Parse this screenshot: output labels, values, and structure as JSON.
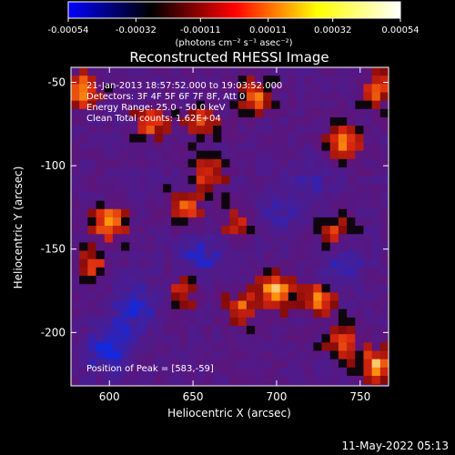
{
  "chart_data": {
    "type": "heatmap",
    "title": "Reconstructed RHESSI Image",
    "xlabel": "Heliocentric X (arcsec)",
    "ylabel": "Heliocentric Y (arcsec)",
    "xlim": [
      577,
      767
    ],
    "ylim": [
      -232,
      -41
    ],
    "x_ticks": [
      {
        "value": 600,
        "label": "600"
      },
      {
        "value": 650,
        "label": "650"
      },
      {
        "value": 700,
        "label": "700"
      },
      {
        "value": 750,
        "label": "750"
      }
    ],
    "y_ticks": [
      {
        "value": -50,
        "label": "-50"
      },
      {
        "value": -100,
        "label": "-100"
      },
      {
        "value": -150,
        "label": "-150"
      },
      {
        "value": -200,
        "label": "-200"
      }
    ],
    "colorbar": {
      "min": -0.00054,
      "max": 0.00054,
      "unit_label": "(photons cm⁻² s⁻¹ asec⁻²)",
      "ticks": [
        {
          "value": -0.00054,
          "label": "-0.00054"
        },
        {
          "value": -0.00032,
          "label": "-0.00032"
        },
        {
          "value": -0.00011,
          "label": "-0.00011"
        },
        {
          "value": 0.00011,
          "label": "0.00011"
        },
        {
          "value": 0.00032,
          "label": "0.00032"
        },
        {
          "value": 0.00054,
          "label": "0.00054"
        }
      ],
      "colormap": [
        "#0000ff",
        "#000000",
        "#ff0000",
        "#ffff00",
        "#ffffff"
      ]
    },
    "annotations": [
      "21-Jan-2013 18:57:52.000 to 19:03:52.000",
      "Detectors: 3F 4F 5F 6F 7F 8F, Att 0",
      "Energy Range: 25.0 - 50.0 keV",
      "Clean     Total counts: 1.62E+04"
    ],
    "peak_annotation": "Position of Peak = [583,-59]",
    "peak_position": [
      583,
      -59
    ],
    "hot_spots": [
      {
        "x": 583,
        "y": -55,
        "level": 0.95
      },
      {
        "x": 625,
        "y": -75,
        "level": 0.6
      },
      {
        "x": 655,
        "y": -72,
        "level": 0.55
      },
      {
        "x": 688,
        "y": -58,
        "level": 0.7
      },
      {
        "x": 740,
        "y": -85,
        "level": 0.8
      },
      {
        "x": 760,
        "y": -55,
        "level": 0.6
      },
      {
        "x": 600,
        "y": -135,
        "level": 0.85
      },
      {
        "x": 645,
        "y": -125,
        "level": 0.6
      },
      {
        "x": 660,
        "y": -105,
        "level": 0.6
      },
      {
        "x": 675,
        "y": -135,
        "level": 0.5
      },
      {
        "x": 590,
        "y": -160,
        "level": 0.5
      },
      {
        "x": 700,
        "y": -175,
        "level": 0.9
      },
      {
        "x": 725,
        "y": -180,
        "level": 0.7
      },
      {
        "x": 680,
        "y": -185,
        "level": 0.6
      },
      {
        "x": 645,
        "y": -175,
        "level": 0.5
      },
      {
        "x": 760,
        "y": -220,
        "level": 0.9
      },
      {
        "x": 740,
        "y": -205,
        "level": 0.6
      },
      {
        "x": 735,
        "y": -140,
        "level": 0.5
      }
    ],
    "cold_spots": [
      {
        "x": 600,
        "y": -210,
        "level": 0.7
      },
      {
        "x": 615,
        "y": -185,
        "level": 0.55
      },
      {
        "x": 655,
        "y": -155,
        "level": 0.5
      },
      {
        "x": 740,
        "y": -160,
        "level": 0.4
      },
      {
        "x": 700,
        "y": -130,
        "level": 0.35
      },
      {
        "x": 720,
        "y": -110,
        "level": 0.3
      }
    ]
  },
  "footer": {
    "timestamp": "11-May-2022 05:13"
  }
}
